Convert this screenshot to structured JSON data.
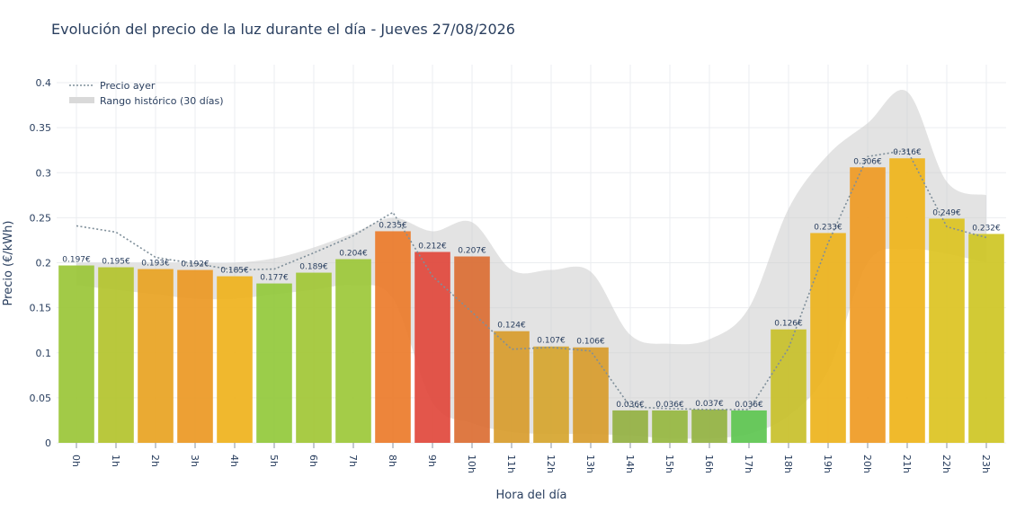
{
  "chart_data": {
    "type": "bar",
    "title": "Evolución del precio de la luz durante el día - Jueves 27/08/2026",
    "xlabel": "Hora del día",
    "ylabel": "Precio (€/kWh)",
    "ylim": [
      0,
      0.42
    ],
    "yticks": [
      "0",
      "0.05",
      "0.1",
      "0.15",
      "0.2",
      "0.25",
      "0.3",
      "0.35",
      "0.4"
    ],
    "ytick_values": [
      0,
      0.05,
      0.1,
      0.15,
      0.2,
      0.25,
      0.3,
      0.35,
      0.4
    ],
    "categories": [
      "0h",
      "1h",
      "2h",
      "3h",
      "4h",
      "5h",
      "6h",
      "7h",
      "8h",
      "9h",
      "10h",
      "11h",
      "12h",
      "13h",
      "14h",
      "15h",
      "16h",
      "17h",
      "18h",
      "19h",
      "20h",
      "21h",
      "22h",
      "23h"
    ],
    "values": [
      0.197,
      0.195,
      0.193,
      0.192,
      0.185,
      0.177,
      0.189,
      0.204,
      0.235,
      0.212,
      0.207,
      0.124,
      0.107,
      0.106,
      0.036,
      0.036,
      0.037,
      0.036,
      0.126,
      0.233,
      0.306,
      0.316,
      0.249,
      0.232
    ],
    "value_labels": [
      "0.197€",
      "0.195€",
      "0.193€",
      "0.192€",
      "0.185€",
      "0.177€",
      "0.189€",
      "0.204€",
      "0.235€",
      "0.212€",
      "0.207€",
      "0.124€",
      "0.107€",
      "0.106€",
      "0.036€",
      "0.036€",
      "0.037€",
      "0.036€",
      "0.126€",
      "0.233€",
      "0.306€",
      "0.316€",
      "0.249€",
      "0.232€"
    ],
    "bar_colors": [
      "#9ac537",
      "#b3c32d",
      "#e8a322",
      "#ec9823",
      "#efb21c",
      "#93c93b",
      "#a1c735",
      "#9cc838",
      "#ec7b2a",
      "#e1483c",
      "#db6e33",
      "#d89c2c",
      "#d6a52e",
      "#d89c2c",
      "#94b142",
      "#96b740",
      "#94b342",
      "#5dc650",
      "#c8c02a",
      "#edb31c",
      "#ef9a23",
      "#efb41a",
      "#dcc321",
      "#cec524"
    ],
    "series": [
      {
        "name": "Precio ayer",
        "type": "line",
        "style": "dotted",
        "color": "#7f8f9a",
        "values": [
          0.241,
          0.234,
          0.206,
          0.199,
          0.192,
          0.193,
          0.211,
          0.23,
          0.256,
          0.185,
          0.145,
          0.104,
          0.106,
          0.102,
          0.04,
          0.038,
          0.037,
          0.037,
          0.105,
          0.222,
          0.318,
          0.325,
          0.24,
          0.228
        ]
      },
      {
        "name": "Rango histórico (30 días)",
        "type": "area",
        "color": "#cccccc",
        "upper": [
          0.2,
          0.2,
          0.2,
          0.2,
          0.2,
          0.205,
          0.217,
          0.233,
          0.25,
          0.235,
          0.245,
          0.192,
          0.192,
          0.19,
          0.12,
          0.11,
          0.115,
          0.15,
          0.26,
          0.32,
          0.355,
          0.39,
          0.29,
          0.275
        ],
        "lower": [
          0.175,
          0.17,
          0.165,
          0.16,
          0.16,
          0.165,
          0.17,
          0.175,
          0.16,
          0.045,
          0.022,
          0.012,
          0.01,
          0.01,
          0.008,
          0.005,
          0.005,
          0.01,
          0.03,
          0.08,
          0.2,
          0.215,
          0.21,
          0.2
        ]
      }
    ],
    "legend_position": "top-left",
    "grid": true
  }
}
